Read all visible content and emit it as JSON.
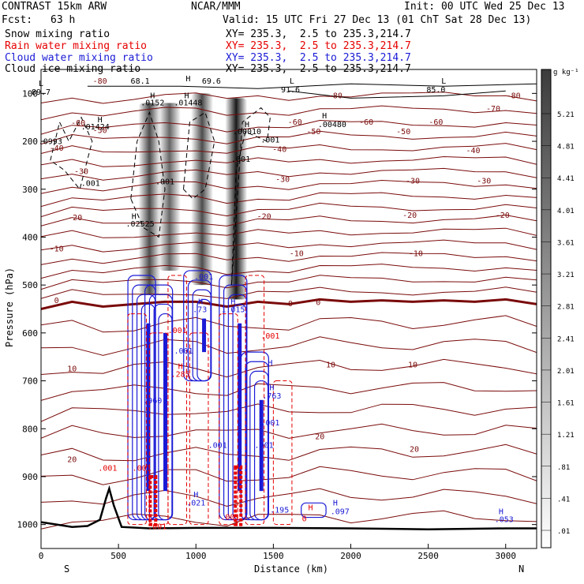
{
  "header": {
    "model": "CONTRAST 15km ARW",
    "center": "NCAR/MMM",
    "init": "Init: 00 UTC Wed 25 Dec 13",
    "fcst_label": "Fcst:",
    "fcst_value": "63 h",
    "valid": "Valid: 15 UTC Fri 27 Dec 13 (01 ChT Sat 28 Dec 13)"
  },
  "fields": [
    {
      "name": "Snow mixing ratio",
      "xy": "XY= 235.3,  2.5 to 235.3,214.7",
      "color": "#000000"
    },
    {
      "name": "Rain water mixing ratio",
      "xy": "XY= 235.3,  2.5 to 235.3,214.7",
      "color": "#e60000"
    },
    {
      "name": "Cloud water mixing ratio",
      "xy": "XY= 235.3,  2.5 to 235.3,214.7",
      "color": "#1a1ad6"
    },
    {
      "name": "Cloud ice mixing ratio",
      "xy": "XY= 235.3,  2.5 to 235.3,214.7",
      "color": "#000000"
    }
  ],
  "chart_data": {
    "type": "heatmap",
    "xlabel": "Distance (km)",
    "ylabel": "Pressure (hPa)",
    "x_ticks": [
      0,
      500,
      1000,
      1500,
      2000,
      2500,
      3000
    ],
    "y_ticks": [
      100,
      200,
      300,
      400,
      500,
      600,
      700,
      800,
      900,
      1000
    ],
    "xlim": [
      0,
      3200
    ],
    "ylim": [
      1050,
      50
    ],
    "x_end_labels": {
      "left": "S",
      "right": "N"
    },
    "colorbar": {
      "unit": "g kg⁻¹",
      "levels": [
        ".01",
        ".41",
        ".81",
        "1.21",
        "1.61",
        "2.01",
        "2.41",
        "2.81",
        "3.21",
        "3.61",
        "4.01",
        "4.41",
        "4.81",
        "5.21"
      ]
    },
    "snow_bands": [
      {
        "x": 700,
        "p_top": 120,
        "p_bottom": 520,
        "intensity": 0.7
      },
      {
        "x": 830,
        "p_top": 120,
        "p_bottom": 470,
        "intensity": 0.6
      },
      {
        "x": 1040,
        "p_top": 100,
        "p_bottom": 500,
        "intensity": 0.7
      },
      {
        "x": 1260,
        "p_top": 110,
        "p_bottom": 530,
        "intensity": 0.9
      }
    ],
    "temperature_contours": {
      "color": "#7a0a0a",
      "zero_isotherm": [
        [
          0,
          550
        ],
        [
          200,
          535
        ],
        [
          400,
          545
        ],
        [
          600,
          540
        ],
        [
          800,
          535
        ],
        [
          1000,
          535
        ],
        [
          1200,
          545
        ],
        [
          1400,
          535
        ],
        [
          1600,
          540
        ],
        [
          1800,
          530
        ],
        [
          2000,
          535
        ],
        [
          2200,
          532
        ],
        [
          2400,
          535
        ],
        [
          2600,
          532
        ],
        [
          2800,
          535
        ],
        [
          3000,
          530
        ],
        [
          3200,
          540
        ]
      ]
    },
    "terrain": [
      [
        0,
        995
      ],
      [
        100,
        1000
      ],
      [
        200,
        1005
      ],
      [
        300,
        1003
      ],
      [
        380,
        990
      ],
      [
        420,
        945
      ],
      [
        440,
        925
      ],
      [
        470,
        960
      ],
      [
        520,
        1005
      ],
      [
        700,
        1008
      ],
      [
        1000,
        1007
      ],
      [
        1500,
        1007
      ],
      [
        2000,
        1008
      ],
      [
        2500,
        1010
      ],
      [
        3000,
        1008
      ],
      [
        3200,
        1008
      ]
    ],
    "labels": [
      {
        "text": "L",
        "x": 0,
        "p": 85,
        "color": "#000"
      },
      {
        "text": "89.7",
        "x": 0,
        "p": 103,
        "color": "#000"
      },
      {
        "text": "-80",
        "x": 380,
        "p": 80,
        "color": "#7a0a0a"
      },
      {
        "text": "68.1",
        "x": 640,
        "p": 80,
        "color": "#000"
      },
      {
        "text": "H",
        "x": 950,
        "p": 75,
        "color": "#000"
      },
      {
        "text": "69.6",
        "x": 1100,
        "p": 80,
        "color": "#000"
      },
      {
        "text": "L",
        "x": 1620,
        "p": 80,
        "color": "#000"
      },
      {
        "text": "91.6",
        "x": 1610,
        "p": 98,
        "color": "#000"
      },
      {
        "text": "L",
        "x": 2600,
        "p": 80,
        "color": "#000"
      },
      {
        "text": "85.0",
        "x": 2550,
        "p": 98,
        "color": "#000"
      },
      {
        "text": "-80",
        "x": 1900,
        "p": 110,
        "color": "#7a0a0a"
      },
      {
        "text": "-80",
        "x": 3050,
        "p": 110,
        "color": "#7a0a0a"
      },
      {
        "text": "-70",
        "x": 2920,
        "p": 137,
        "color": "#7a0a0a"
      },
      {
        "text": "H",
        "x": 720,
        "p": 110,
        "color": "#000"
      },
      {
        "text": ".0152",
        "x": 720,
        "p": 125,
        "color": "#000"
      },
      {
        "text": "H",
        "x": 940,
        "p": 110,
        "color": "#000"
      },
      {
        "text": ".01448",
        "x": 950,
        "p": 125,
        "color": "#000"
      },
      {
        "text": "H",
        "x": 380,
        "p": 160,
        "color": "#000"
      },
      {
        "text": ".01424",
        "x": 350,
        "p": 175,
        "color": "#000"
      },
      {
        "text": "H",
        "x": 1830,
        "p": 152,
        "color": "#000"
      },
      {
        "text": ".00480",
        "x": 1880,
        "p": 170,
        "color": "#000"
      },
      {
        "text": "H",
        "x": 1330,
        "p": 170,
        "color": "#000"
      },
      {
        "text": ".00010",
        "x": 1330,
        "p": 185,
        "color": "#000"
      },
      {
        "text": "-60",
        "x": 240,
        "p": 167,
        "color": "#7a0a0a"
      },
      {
        "text": "-60",
        "x": 1640,
        "p": 165,
        "color": "#7a0a0a"
      },
      {
        "text": "-60",
        "x": 2100,
        "p": 165,
        "color": "#7a0a0a"
      },
      {
        "text": "-60",
        "x": 2550,
        "p": 165,
        "color": "#7a0a0a"
      },
      {
        "text": "-50",
        "x": 380,
        "p": 183,
        "color": "#7a0a0a"
      },
      {
        "text": "-50",
        "x": 1760,
        "p": 185,
        "color": "#7a0a0a"
      },
      {
        "text": "-50",
        "x": 2340,
        "p": 185,
        "color": "#7a0a0a"
      },
      {
        "text": ".0993",
        "x": 60,
        "p": 206,
        "color": "#000"
      },
      {
        "text": ".001",
        "x": 1480,
        "p": 202,
        "color": "#000"
      },
      {
        "text": "-40",
        "x": 100,
        "p": 220,
        "color": "#7a0a0a"
      },
      {
        "text": "-40",
        "x": 1540,
        "p": 222,
        "color": "#7a0a0a"
      },
      {
        "text": "-40",
        "x": 2790,
        "p": 225,
        "color": "#7a0a0a"
      },
      {
        "text": ".001",
        "x": 1290,
        "p": 243,
        "color": "#000"
      },
      {
        "text": "-30",
        "x": 260,
        "p": 268,
        "color": "#7a0a0a"
      },
      {
        "text": "-30",
        "x": 1560,
        "p": 285,
        "color": "#7a0a0a"
      },
      {
        "text": "-30",
        "x": 2400,
        "p": 288,
        "color": "#7a0a0a"
      },
      {
        "text": "-30",
        "x": 2860,
        "p": 288,
        "color": "#7a0a0a"
      },
      {
        "text": ".001",
        "x": 320,
        "p": 293,
        "color": "#000"
      },
      {
        "text": ".001",
        "x": 800,
        "p": 290,
        "color": "#000"
      },
      {
        "text": "-20",
        "x": 220,
        "p": 365,
        "color": "#7a0a0a"
      },
      {
        "text": "-20",
        "x": 1440,
        "p": 362,
        "color": "#7a0a0a"
      },
      {
        "text": "-20",
        "x": 2380,
        "p": 360,
        "color": "#7a0a0a"
      },
      {
        "text": "-20",
        "x": 2980,
        "p": 360,
        "color": "#7a0a0a"
      },
      {
        "text": "H",
        "x": 600,
        "p": 362,
        "color": "#000"
      },
      {
        "text": ".02525",
        "x": 640,
        "p": 378,
        "color": "#000"
      },
      {
        "text": "-10",
        "x": 100,
        "p": 430,
        "color": "#7a0a0a"
      },
      {
        "text": "-10",
        "x": 1650,
        "p": 440,
        "color": "#7a0a0a"
      },
      {
        "text": "-10",
        "x": 2420,
        "p": 440,
        "color": "#7a0a0a"
      },
      {
        "text": ".001",
        "x": 1050,
        "p": 488,
        "color": "#1a1ad6"
      },
      {
        "text": "0",
        "x": 100,
        "p": 538,
        "color": "#7a0a0a"
      },
      {
        "text": "0",
        "x": 1610,
        "p": 544,
        "color": "#7a0a0a"
      },
      {
        "text": "0",
        "x": 1790,
        "p": 542,
        "color": "#7a0a0a"
      },
      {
        "text": "H",
        "x": 1030,
        "p": 540,
        "color": "#1a1ad6"
      },
      {
        "text": ".73",
        "x": 1025,
        "p": 557,
        "color": "#1a1ad6"
      },
      {
        "text": "H",
        "x": 1240,
        "p": 540,
        "color": "#1a1ad6"
      },
      {
        "text": "1.015",
        "x": 1240,
        "p": 557,
        "color": "#1a1ad6"
      },
      {
        "text": ".001",
        "x": 880,
        "p": 600,
        "color": "#e60000"
      },
      {
        "text": ".001",
        "x": 1480,
        "p": 612,
        "color": "#e60000"
      },
      {
        "text": ".001",
        "x": 920,
        "p": 643,
        "color": "#1a1ad6"
      },
      {
        "text": "10",
        "x": 200,
        "p": 680,
        "color": "#7a0a0a"
      },
      {
        "text": "10",
        "x": 1870,
        "p": 672,
        "color": "#7a0a0a"
      },
      {
        "text": "10",
        "x": 2400,
        "p": 672,
        "color": "#7a0a0a"
      },
      {
        "text": "H",
        "x": 900,
        "p": 675,
        "color": "#e60000"
      },
      {
        "text": ".285",
        "x": 900,
        "p": 692,
        "color": "#e60000"
      },
      {
        "text": "H",
        "x": 1480,
        "p": 668,
        "color": "#1a1ad6"
      },
      {
        "text": "H",
        "x": 1490,
        "p": 720,
        "color": "#1a1ad6"
      },
      {
        "text": ".763",
        "x": 1490,
        "p": 737,
        "color": "#1a1ad6"
      },
      {
        "text": ".960",
        "x": 720,
        "p": 747,
        "color": "#1a1ad6"
      },
      {
        "text": ".001",
        "x": 1480,
        "p": 793,
        "color": "#1a1ad6"
      },
      {
        "text": "20",
        "x": 1800,
        "p": 822,
        "color": "#7a0a0a"
      },
      {
        "text": "20",
        "x": 2410,
        "p": 848,
        "color": "#7a0a0a"
      },
      {
        "text": ".001",
        "x": 1140,
        "p": 840,
        "color": "#1a1ad6"
      },
      {
        "text": ".001",
        "x": 1440,
        "p": 840,
        "color": "#1a1ad6"
      },
      {
        "text": "20",
        "x": 200,
        "p": 870,
        "color": "#7a0a0a"
      },
      {
        "text": ".001",
        "x": 430,
        "p": 888,
        "color": "#e60000"
      },
      {
        "text": ".001",
        "x": 650,
        "p": 888,
        "color": "#e60000"
      },
      {
        "text": "H",
        "x": 1000,
        "p": 943,
        "color": "#1a1ad6"
      },
      {
        "text": ".021",
        "x": 1000,
        "p": 960,
        "color": "#1a1ad6"
      },
      {
        "text": "H",
        "x": 1900,
        "p": 960,
        "color": "#1a1ad6"
      },
      {
        "text": ".097",
        "x": 1930,
        "p": 978,
        "color": "#1a1ad6"
      },
      {
        "text": ".195",
        "x": 1540,
        "p": 975,
        "color": "#1a1ad6"
      },
      {
        "text": "H",
        "x": 1740,
        "p": 970,
        "color": "#e60000"
      },
      {
        "text": "0",
        "x": 1700,
        "p": 993,
        "color": "#e60000"
      },
      {
        "text": ".001",
        "x": 1220,
        "p": 990,
        "color": "#e60000"
      },
      {
        "text": ".001",
        "x": 750,
        "p": 1010,
        "color": "#e60000"
      },
      {
        "text": "H",
        "x": 2970,
        "p": 978,
        "color": "#1a1ad6"
      },
      {
        "text": ".053",
        "x": 2990,
        "p": 995,
        "color": "#1a1ad6"
      }
    ]
  }
}
